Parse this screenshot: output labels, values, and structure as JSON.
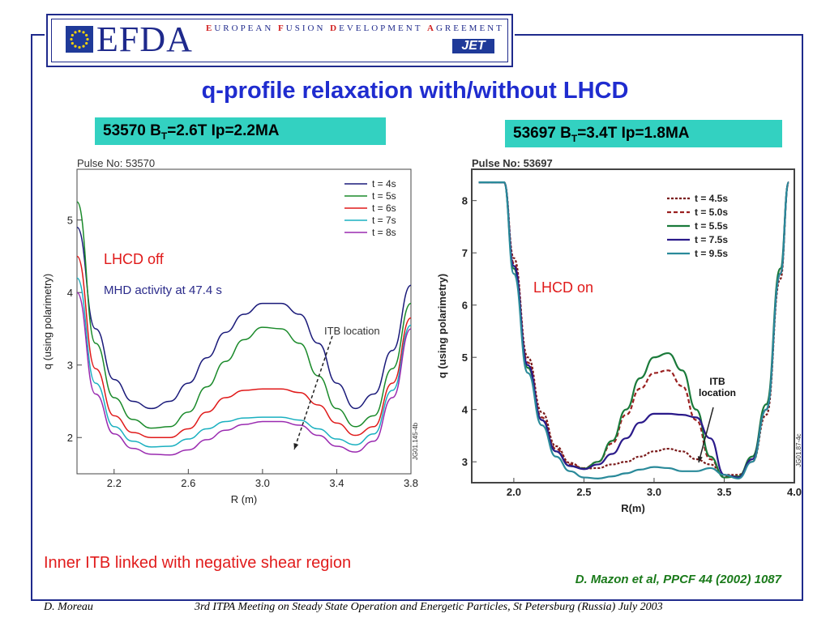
{
  "header": {
    "logo_text": "EFDA",
    "tagline": [
      {
        "cap": "E",
        "rest": "UROPEAN "
      },
      {
        "cap": "F",
        "rest": "USION "
      },
      {
        "cap": "D",
        "rest": "EVELOPMENT "
      },
      {
        "cap": "A",
        "rest": "GREEMENT"
      }
    ],
    "jet_label": "JET"
  },
  "title": "q-profile relaxation with/without LHCD",
  "labels": {
    "left": {
      "pre": "53570 B",
      "sub": "T",
      "post": "=2.6T Ip=2.2MA"
    },
    "right": {
      "pre": "53697 B",
      "sub": "T",
      "post": "=3.4T Ip=1.8MA"
    }
  },
  "caption": "Inner ITB linked with negative shear region",
  "reference": "D. Mazon et al, PPCF 44 (2002) 1087",
  "footer": {
    "author": "D. Moreau",
    "meeting": "3rd ITPA Meeting on Steady State Operation and Energetic Particles, St Petersburg (Russia) July 2003"
  },
  "colors": {
    "title": "#1f2ccf",
    "label_bg": "#33d1c1",
    "frame": "#1f2a8c"
  },
  "chart_data": [
    {
      "type": "line",
      "title": "Pulse No: 53570",
      "xlabel": "R (m)",
      "ylabel": "q (using polarimetry)",
      "xlim": [
        2.0,
        3.8
      ],
      "ylim": [
        1.5,
        5.7
      ],
      "xticks": [
        "2.2",
        "2.6",
        "3.0",
        "3.4",
        "3.8"
      ],
      "yticks": [
        "2",
        "3",
        "4",
        "5"
      ],
      "legend_position": "top-right",
      "annotations": [
        "LHCD off",
        "MHD activity at 47.4 s",
        "ITB location"
      ],
      "side_id": "JG01.145-4b",
      "series": [
        {
          "name": "t = 4s",
          "color": "#1a1a7a",
          "x": [
            2.0,
            2.1,
            2.2,
            2.3,
            2.4,
            2.5,
            2.6,
            2.7,
            2.8,
            2.9,
            3.0,
            3.1,
            3.2,
            3.3,
            3.4,
            3.5,
            3.6,
            3.7,
            3.8
          ],
          "y": [
            4.9,
            3.5,
            2.8,
            2.5,
            2.4,
            2.5,
            2.75,
            3.1,
            3.45,
            3.7,
            3.85,
            3.85,
            3.7,
            3.3,
            2.75,
            2.4,
            2.6,
            3.2,
            4.1
          ]
        },
        {
          "name": "t = 5s",
          "color": "#1a8a2a",
          "x": [
            2.0,
            2.1,
            2.2,
            2.3,
            2.4,
            2.5,
            2.6,
            2.7,
            2.8,
            2.9,
            3.0,
            3.1,
            3.2,
            3.3,
            3.4,
            3.5,
            3.6,
            3.7,
            3.8
          ],
          "y": [
            5.25,
            3.3,
            2.55,
            2.25,
            2.13,
            2.15,
            2.35,
            2.7,
            3.05,
            3.35,
            3.52,
            3.5,
            3.3,
            2.85,
            2.4,
            2.15,
            2.3,
            2.95,
            3.85
          ]
        },
        {
          "name": "t = 6s",
          "color": "#e01a1a",
          "x": [
            2.0,
            2.1,
            2.2,
            2.3,
            2.4,
            2.5,
            2.6,
            2.7,
            2.8,
            2.9,
            3.0,
            3.1,
            3.2,
            3.3,
            3.4,
            3.5,
            3.6,
            3.7,
            3.8
          ],
          "y": [
            4.5,
            2.95,
            2.3,
            2.07,
            2.0,
            2.0,
            2.12,
            2.35,
            2.55,
            2.65,
            2.67,
            2.67,
            2.62,
            2.45,
            2.2,
            2.03,
            2.15,
            2.75,
            3.65
          ]
        },
        {
          "name": "t = 7s",
          "color": "#1ab0c0",
          "x": [
            2.0,
            2.1,
            2.2,
            2.3,
            2.4,
            2.5,
            2.6,
            2.7,
            2.8,
            2.9,
            3.0,
            3.1,
            3.2,
            3.3,
            3.4,
            3.5,
            3.6,
            3.7,
            3.8
          ],
          "y": [
            4.2,
            2.75,
            2.15,
            1.95,
            1.87,
            1.88,
            1.98,
            2.12,
            2.22,
            2.27,
            2.28,
            2.28,
            2.24,
            2.12,
            1.98,
            1.9,
            2.05,
            2.65,
            3.55
          ]
        },
        {
          "name": "t = 8s",
          "color": "#9a2ab0",
          "x": [
            2.0,
            2.1,
            2.2,
            2.3,
            2.4,
            2.5,
            2.6,
            2.7,
            2.8,
            2.9,
            3.0,
            3.1,
            3.2,
            3.3,
            3.4,
            3.5,
            3.6,
            3.7,
            3.8
          ],
          "y": [
            4.0,
            2.6,
            2.05,
            1.85,
            1.77,
            1.76,
            1.83,
            1.97,
            2.1,
            2.18,
            2.22,
            2.22,
            2.17,
            2.03,
            1.88,
            1.8,
            1.95,
            2.55,
            3.5
          ]
        }
      ]
    },
    {
      "type": "line",
      "title": "Pulse No: 53697",
      "xlabel": "R(m)",
      "ylabel": "q (using polarimetry)",
      "xlim": [
        1.7,
        4.0
      ],
      "ylim": [
        2.6,
        8.6
      ],
      "xticks": [
        "2.0",
        "2.5",
        "3.0",
        "3.5",
        "4.0"
      ],
      "yticks": [
        "3",
        "4",
        "5",
        "6",
        "7",
        "8"
      ],
      "legend_position": "top-right",
      "annotations": [
        "LHCD on",
        "ITB location"
      ],
      "side_id": "JG01.87-4c",
      "series": [
        {
          "name": "t = 4.5s",
          "color": "#7a1a1a",
          "dash": "3,2",
          "x": [
            1.75,
            1.93,
            2.0,
            2.1,
            2.2,
            2.3,
            2.4,
            2.5,
            2.6,
            2.7,
            2.8,
            2.9,
            3.0,
            3.1,
            3.2,
            3.3,
            3.4,
            3.5,
            3.6,
            3.7,
            3.8,
            3.9,
            3.96
          ],
          "y": [
            8.35,
            8.35,
            6.9,
            5.0,
            3.95,
            3.3,
            2.98,
            2.87,
            2.88,
            2.95,
            3.0,
            3.1,
            3.2,
            3.25,
            3.2,
            3.05,
            2.95,
            2.75,
            2.75,
            3.0,
            3.9,
            6.5,
            8.35
          ]
        },
        {
          "name": "t = 5.0s",
          "color": "#9a2020",
          "dash": "5,3",
          "x": [
            1.75,
            1.93,
            2.0,
            2.1,
            2.2,
            2.3,
            2.4,
            2.5,
            2.6,
            2.7,
            2.8,
            2.9,
            3.0,
            3.1,
            3.2,
            3.3,
            3.4,
            3.5,
            3.6,
            3.7,
            3.8,
            3.9,
            3.96
          ],
          "y": [
            8.35,
            8.35,
            6.8,
            4.9,
            3.85,
            3.25,
            2.95,
            2.88,
            3.0,
            3.35,
            3.9,
            4.4,
            4.7,
            4.75,
            4.45,
            3.8,
            3.05,
            2.72,
            2.72,
            3.05,
            4.0,
            6.6,
            8.35
          ]
        },
        {
          "name": "t = 5.5s",
          "color": "#1a7a3a",
          "x": [
            1.75,
            1.93,
            2.0,
            2.1,
            2.2,
            2.3,
            2.4,
            2.5,
            2.6,
            2.7,
            2.8,
            2.9,
            3.0,
            3.1,
            3.2,
            3.3,
            3.4,
            3.5,
            3.6,
            3.7,
            3.8,
            3.9,
            3.96
          ],
          "y": [
            8.35,
            8.35,
            6.7,
            4.8,
            3.8,
            3.2,
            2.92,
            2.87,
            3.0,
            3.4,
            4.0,
            4.6,
            5.0,
            5.08,
            4.75,
            4.0,
            3.1,
            2.7,
            2.72,
            3.1,
            4.1,
            6.7,
            8.35
          ]
        },
        {
          "name": "t = 7.5s",
          "color": "#2a1a8a",
          "x": [
            1.75,
            1.93,
            2.0,
            2.1,
            2.2,
            2.3,
            2.4,
            2.5,
            2.6,
            2.7,
            2.8,
            2.9,
            3.0,
            3.1,
            3.2,
            3.3,
            3.4,
            3.5,
            3.6,
            3.7,
            3.8,
            3.9,
            3.96
          ],
          "y": [
            8.35,
            8.35,
            6.75,
            4.85,
            3.8,
            3.2,
            2.92,
            2.86,
            2.95,
            3.15,
            3.45,
            3.75,
            3.92,
            3.92,
            3.9,
            3.85,
            3.45,
            2.75,
            2.7,
            3.05,
            4.0,
            6.6,
            8.35
          ]
        },
        {
          "name": "t = 9.5s",
          "color": "#2a8a9a",
          "x": [
            1.75,
            1.93,
            2.0,
            2.1,
            2.2,
            2.3,
            2.4,
            2.5,
            2.6,
            2.7,
            2.8,
            2.9,
            3.0,
            3.1,
            3.2,
            3.3,
            3.4,
            3.5,
            3.6,
            3.7,
            3.8,
            3.9,
            3.96
          ],
          "y": [
            8.35,
            8.35,
            6.6,
            4.7,
            3.7,
            3.1,
            2.82,
            2.7,
            2.68,
            2.72,
            2.78,
            2.85,
            2.9,
            2.88,
            2.82,
            2.82,
            2.88,
            2.75,
            2.68,
            3.0,
            4.0,
            6.6,
            8.35
          ]
        }
      ]
    }
  ]
}
